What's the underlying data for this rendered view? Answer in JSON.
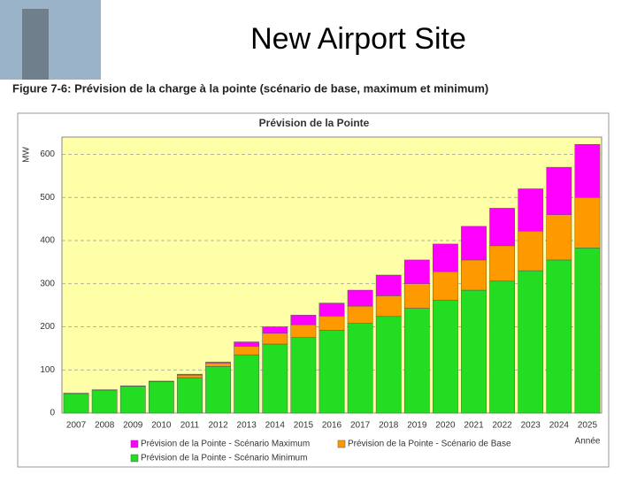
{
  "slide_title": "New Airport Site",
  "figure_caption": "Figure 7-6:  Prévision de la charge à la pointe (scénario de base, maximum et minimum)",
  "chart_data": {
    "type": "stacked_bar",
    "title": "Prévision de la Pointe",
    "y_label": "MW",
    "x_label": "Année",
    "categories": [
      "2007",
      "2008",
      "2009",
      "2010",
      "2011",
      "2012",
      "2013",
      "2014",
      "2015",
      "2016",
      "2017",
      "2018",
      "2019",
      "2020",
      "2021",
      "2022",
      "2023",
      "2024",
      "2025"
    ],
    "series": [
      {
        "name": "Prévision de la Pointe - Scénario Minimum",
        "color": "#22dd22",
        "values": [
          45,
          53,
          62,
          73,
          82,
          108,
          135,
          160,
          175,
          192,
          208,
          224,
          243,
          262,
          285,
          306,
          330,
          355,
          383
        ]
      },
      {
        "name": "Prévision de la Pointe - Scénario de Base",
        "color": "#ff9900",
        "values": [
          1,
          1,
          1,
          1,
          6,
          8,
          20,
          25,
          30,
          33,
          40,
          48,
          57,
          66,
          70,
          82,
          92,
          105,
          117
        ]
      },
      {
        "name": "Prévision de la Pointe - Scénario Maximum",
        "color": "#ff00ff",
        "values": [
          0,
          0,
          0,
          0,
          2,
          2,
          10,
          15,
          22,
          30,
          37,
          48,
          55,
          64,
          78,
          87,
          98,
          110,
          123
        ]
      }
    ],
    "ylim": [
      0,
      640
    ],
    "yticks": [
      0,
      100,
      200,
      300,
      400,
      500,
      600
    ],
    "grid": true
  }
}
